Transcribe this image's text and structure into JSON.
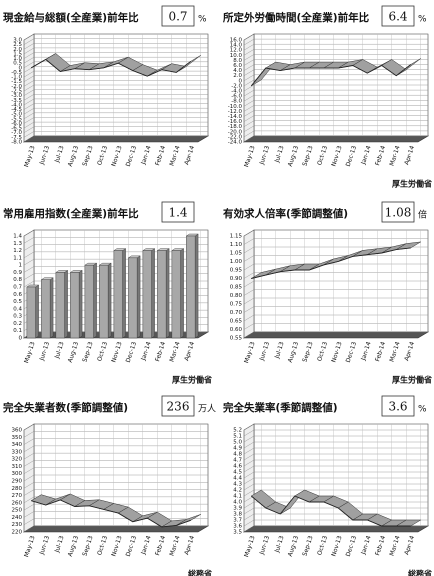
{
  "chart_data": [
    {
      "type": "line",
      "title": "現金給与総額(全産業)前年比",
      "value_box": 0.7,
      "unit": "%",
      "color": "#a0a0a0",
      "categories": [
        "May-13",
        "Jun-13",
        "Jul-13",
        "Aug-13",
        "Sep-13",
        "Oct-13",
        "Nov-13",
        "Dec-13",
        "Jan-14",
        "Feb-14",
        "Mar-14",
        "Apr-14"
      ],
      "values": [
        0.0,
        0.9,
        -0.4,
        -0.1,
        -0.2,
        0.0,
        0.5,
        -0.3,
        -0.9,
        -0.2,
        -0.5,
        0.7
      ],
      "ylim": [
        -8,
        3
      ],
      "yticks": [
        {
          "value": 3,
          "label": "3.0"
        },
        2.5,
        {
          "value": 2,
          "label": "2.0"
        },
        1.5,
        {
          "value": 1,
          "label": "1.0"
        },
        0.5,
        0,
        -0.5,
        {
          "value": -1,
          "label": "-1.0"
        },
        -1.5,
        {
          "value": -2,
          "label": "-2.0"
        },
        -2.5,
        {
          "value": -3,
          "label": "-3.0"
        },
        -3.5,
        {
          "value": -4,
          "label": "-4.0"
        },
        -4.5,
        {
          "value": -5,
          "label": "-5.0"
        },
        -5.5,
        {
          "value": -6,
          "label": "-6.0"
        },
        -6.5,
        {
          "value": -7,
          "label": "-7.0"
        },
        -7.5,
        {
          "value": -8,
          "label": "-8.0"
        }
      ]
    },
    {
      "type": "line",
      "title": "所定外労働時間(全産業)前年比",
      "value_box": 6.4,
      "unit": "%",
      "source": "厚生労働省",
      "color": "#a0a0a0",
      "categories": [
        "May-13",
        "Jun-13",
        "Jul-13",
        "Aug-13",
        "Sep-13",
        "Oct-13",
        "Nov-13",
        "Dec-13",
        "Jan-14",
        "Feb-14",
        "Mar-14",
        "Apr-14"
      ],
      "values": [
        -2,
        5,
        4,
        5,
        5,
        5,
        5,
        6,
        3,
        6,
        2,
        6.4
      ],
      "ylim": [
        -24,
        16
      ],
      "yticks": [
        {
          "value": 16,
          "label": "16.0"
        },
        {
          "value": 14,
          "label": "14.0"
        },
        {
          "value": 12,
          "label": "12.0"
        },
        {
          "value": 10,
          "label": "10.0"
        },
        {
          "value": 8,
          "label": "8.0"
        },
        {
          "value": 6,
          "label": "6.0"
        },
        {
          "value": 4,
          "label": "4.0"
        },
        {
          "value": 2,
          "label": "2.0"
        },
        0,
        {
          "value": -2,
          "label": "-2.0"
        },
        {
          "value": -4,
          "label": "-4.0"
        },
        {
          "value": -6,
          "label": "-6.0"
        },
        {
          "value": -8,
          "label": "-8.0"
        },
        {
          "value": -10,
          "label": "-10.0"
        },
        {
          "value": -12,
          "label": "-12.0"
        },
        {
          "value": -14,
          "label": "-14.0"
        },
        {
          "value": -16,
          "label": "-16.0"
        },
        {
          "value": -18,
          "label": "-18.0"
        },
        {
          "value": -20,
          "label": "-20.0"
        },
        {
          "value": -22,
          "label": "-22.0"
        },
        {
          "value": -24,
          "label": "-24.0"
        }
      ]
    },
    {
      "type": "bar",
      "title": "常用雇用指数(全産業)前年比",
      "value_box": 1.4,
      "source": "厚生労働省",
      "color": "#a8a8a8",
      "categories": [
        "May-13",
        "Jun-13",
        "Jul-13",
        "Aug-13",
        "Sep-13",
        "Oct-13",
        "Nov-13",
        "Dec-13",
        "Jan-14",
        "Feb-14",
        "Mar-14",
        "Apr-14"
      ],
      "values": [
        0.7,
        0.8,
        0.9,
        0.9,
        1.0,
        1.0,
        1.2,
        1.1,
        1.2,
        1.2,
        1.2,
        1.4
      ],
      "ylim": [
        0,
        1.4
      ],
      "yticks": [
        1.4,
        1.3,
        1.2,
        1.1,
        1,
        0.9,
        0.8,
        0.7,
        0.6,
        0.5,
        0.4,
        0.3,
        0.2,
        0.1,
        0
      ]
    },
    {
      "type": "line",
      "title": "有効求人倍率(季節調整値)",
      "value_box": 1.08,
      "unit": "倍",
      "source": "厚生労働省",
      "color": "#a0a0a0",
      "categories": [
        "May-13",
        "Jun-13",
        "Jul-13",
        "Aug-13",
        "Sep-13",
        "Oct-13",
        "Nov-13",
        "Dec-13",
        "Jan-14",
        "Feb-14",
        "Mar-14",
        "Apr-14"
      ],
      "values": [
        0.9,
        0.92,
        0.94,
        0.95,
        0.95,
        0.98,
        1.0,
        1.03,
        1.04,
        1.05,
        1.07,
        1.08
      ],
      "ylim": [
        0.55,
        1.15
      ],
      "yticks": [
        1.15,
        {
          "value": 1.1,
          "label": "1.10"
        },
        1.05,
        {
          "value": 1,
          "label": "1.00"
        },
        0.95,
        {
          "value": 0.9,
          "label": "0.90"
        },
        0.85,
        {
          "value": 0.8,
          "label": "0.80"
        },
        0.75,
        {
          "value": 0.7,
          "label": "0.70"
        },
        0.65,
        {
          "value": 0.6,
          "label": "0.60"
        },
        0.55
      ]
    },
    {
      "type": "line",
      "title": "完全失業者数(季節調整値)",
      "value_box": 236,
      "unit": "万人",
      "source": "総務省",
      "color": "#a0a0a0",
      "categories": [
        "May-13",
        "Jun-13",
        "Jul-13",
        "Aug-13",
        "Sep-13",
        "Oct-13",
        "Nov-13",
        "Dec-13",
        "Jan-14",
        "Feb-14",
        "Mar-14",
        "Apr-14"
      ],
      "values": [
        263,
        257,
        264,
        255,
        256,
        251,
        246,
        234,
        239,
        227,
        229,
        236
      ],
      "ylim": [
        220,
        360
      ],
      "yticks": [
        360,
        350,
        340,
        330,
        320,
        310,
        300,
        290,
        280,
        270,
        260,
        250,
        240,
        230,
        220
      ]
    },
    {
      "type": "line",
      "title": "完全失業率(季節調整値)",
      "value_box": 3.6,
      "unit": "%",
      "source": "総務省",
      "color": "#a0a0a0",
      "categories": [
        "May-13",
        "Jun-13",
        "Jul-13",
        "Aug-13",
        "Sep-13",
        "Oct-13",
        "Nov-13",
        "Dec-13",
        "Jan-14",
        "Feb-14",
        "Mar-14",
        "Apr-14"
      ],
      "values": [
        4.1,
        3.9,
        3.8,
        4.1,
        4.0,
        4.0,
        3.9,
        3.7,
        3.7,
        3.6,
        3.6,
        3.6
      ],
      "ylim": [
        3.5,
        5.2
      ],
      "yticks": [
        5.2,
        5.1,
        {
          "value": 5,
          "label": "5.0"
        },
        4.9,
        4.8,
        4.7,
        4.6,
        4.5,
        4.4,
        4.3,
        4.2,
        4.1,
        {
          "value": 4,
          "label": "4.0"
        },
        3.9,
        3.8,
        3.7,
        3.6,
        3.5
      ]
    }
  ]
}
